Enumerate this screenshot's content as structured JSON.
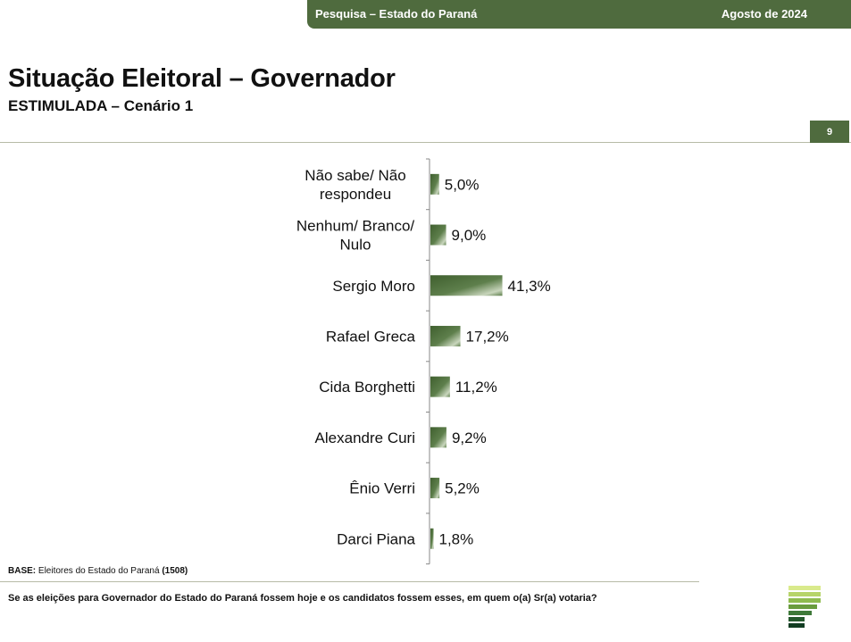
{
  "header": {
    "survey": "Pesquisa – Estado do Paraná",
    "date": "Agosto de 2024"
  },
  "page": {
    "title": "Situação Eleitoral – Governador",
    "subtitle": "ESTIMULADA – Cenário 1",
    "page_number": "9"
  },
  "footer": {
    "base_label": "BASE:",
    "base_text": " Eleitores do Estado do Paraná ",
    "base_count": "(1508)",
    "question": "Se as eleições para Governador do Estado do Paraná fossem hoje e os candidatos fossem esses, em quem o(a) Sr(a) votaria?"
  },
  "colors": {
    "brand_green": "#4f6b3e",
    "bar_dark": "#3f5f2e",
    "bar_light": "#e6ece0",
    "axis": "#888888"
  },
  "chart_data": {
    "type": "bar",
    "orientation": "horizontal",
    "categories": [
      [
        "Não sabe/ Não",
        "respondeu"
      ],
      [
        "Nenhum/ Branco/",
        "Nulo"
      ],
      [
        "Sergio Moro"
      ],
      [
        "Rafael Greca"
      ],
      [
        "Cida Borghetti"
      ],
      [
        "Alexandre Curi"
      ],
      [
        "Ênio Verri"
      ],
      [
        "Darci Piana"
      ]
    ],
    "values": [
      5.0,
      9.0,
      41.3,
      17.2,
      11.2,
      9.2,
      5.2,
      1.8
    ],
    "value_labels": [
      "5,0%",
      "9,0%",
      "41,3%",
      "17,2%",
      "11,2%",
      "9,2%",
      "5,2%",
      "1,8%"
    ],
    "xlim": [
      0,
      100
    ],
    "grid": false,
    "legend": "none"
  }
}
